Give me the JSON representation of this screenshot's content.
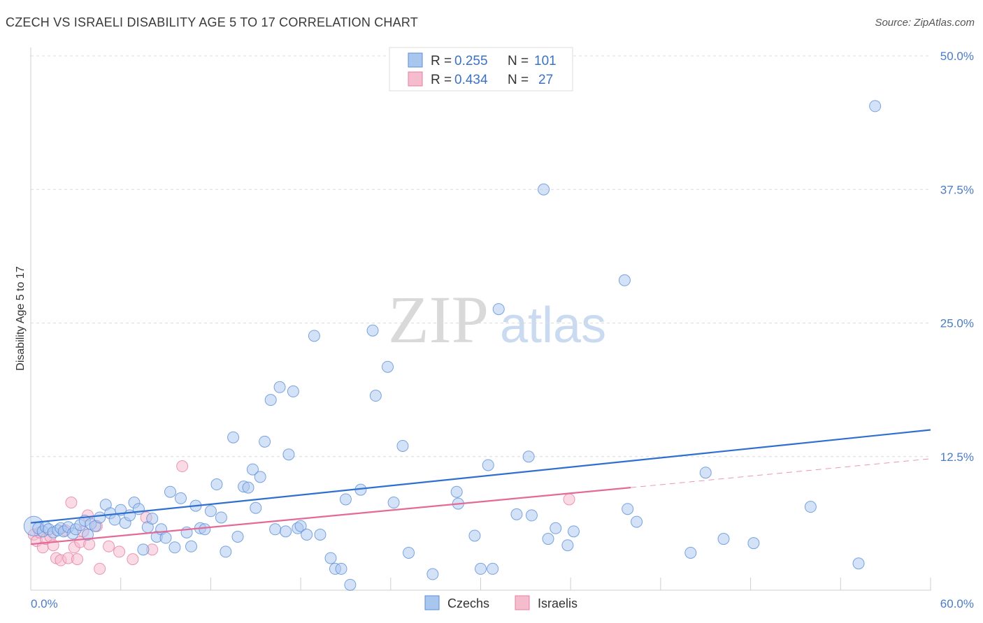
{
  "title": "CZECH VS ISRAELI DISABILITY AGE 5 TO 17 CORRELATION CHART",
  "source": "Source: ZipAtlas.com",
  "watermark": {
    "zip": "ZIP",
    "atlas": "atlas"
  },
  "colors": {
    "blue": "#5b8fd8",
    "blue_fill": "#a9c6ef",
    "blue_line": "#2f6fd0",
    "pink": "#e57fa3",
    "pink_fill": "#f5bccd",
    "pink_line": "#e36a97",
    "tick": "#4a7cc7"
  },
  "legend": {
    "rows": [
      {
        "series": "Czechs",
        "r_label": "R =",
        "r_value": "0.255",
        "n_label": "N =",
        "n_value": "101"
      },
      {
        "series": "Israelis",
        "r_label": "R =",
        "r_value": "0.434",
        "n_label": "N =",
        "n_value": "27"
      }
    ]
  },
  "chart_data": {
    "type": "scatter",
    "title": "CZECH VS ISRAELI DISABILITY AGE 5 TO 17 CORRELATION CHART",
    "xlabel": "",
    "ylabel": "Disability Age 5 to 17",
    "xlim": [
      0,
      60
    ],
    "ylim": [
      0,
      50
    ],
    "x_tick_labels": [
      "0.0%",
      "60.0%"
    ],
    "y_tick_labels": [
      "12.5%",
      "25.0%",
      "37.5%",
      "50.0%"
    ],
    "y_ticks": [
      12.5,
      25.0,
      37.5,
      50.0
    ],
    "x_ticks": [
      0,
      6,
      12,
      18,
      24,
      30,
      36,
      42,
      48,
      54,
      60
    ],
    "grid": true,
    "series": [
      {
        "name": "Czechs",
        "trend": {
          "x": [
            0,
            60
          ],
          "y": [
            6.3,
            15.0
          ]
        },
        "points": [
          [
            0.2,
            6.0
          ],
          [
            0.5,
            5.8
          ],
          [
            0.8,
            5.5
          ],
          [
            1.0,
            5.9
          ],
          [
            1.2,
            5.7
          ],
          [
            1.5,
            5.4
          ],
          [
            1.8,
            5.6
          ],
          [
            2.0,
            5.8
          ],
          [
            2.2,
            5.5
          ],
          [
            2.5,
            5.9
          ],
          [
            2.8,
            5.3
          ],
          [
            3.0,
            5.7
          ],
          [
            3.3,
            6.1
          ],
          [
            3.6,
            6.5
          ],
          [
            3.8,
            5.2
          ],
          [
            4.0,
            6.2
          ],
          [
            4.3,
            6.0
          ],
          [
            4.6,
            6.8
          ],
          [
            5.0,
            8.0
          ],
          [
            5.3,
            7.2
          ],
          [
            5.6,
            6.6
          ],
          [
            6.0,
            7.5
          ],
          [
            6.3,
            6.3
          ],
          [
            6.6,
            7.0
          ],
          [
            6.9,
            8.2
          ],
          [
            7.2,
            7.6
          ],
          [
            7.5,
            3.8
          ],
          [
            7.8,
            5.9
          ],
          [
            8.1,
            6.7
          ],
          [
            8.4,
            5.0
          ],
          [
            8.7,
            5.7
          ],
          [
            9.0,
            4.9
          ],
          [
            9.3,
            9.2
          ],
          [
            9.6,
            4.0
          ],
          [
            10.0,
            8.6
          ],
          [
            10.4,
            5.4
          ],
          [
            10.7,
            4.1
          ],
          [
            11.0,
            7.9
          ],
          [
            11.3,
            5.8
          ],
          [
            11.6,
            5.7
          ],
          [
            12.0,
            7.4
          ],
          [
            12.4,
            9.9
          ],
          [
            12.7,
            6.8
          ],
          [
            13.0,
            3.6
          ],
          [
            13.5,
            14.3
          ],
          [
            13.8,
            5.0
          ],
          [
            14.2,
            9.7
          ],
          [
            14.5,
            9.6
          ],
          [
            14.8,
            11.3
          ],
          [
            15.0,
            7.7
          ],
          [
            15.3,
            10.6
          ],
          [
            15.6,
            13.9
          ],
          [
            16.0,
            17.8
          ],
          [
            16.3,
            5.7
          ],
          [
            16.6,
            19.0
          ],
          [
            17.0,
            5.5
          ],
          [
            17.2,
            12.7
          ],
          [
            17.5,
            18.6
          ],
          [
            17.8,
            5.8
          ],
          [
            18.0,
            6.0
          ],
          [
            18.4,
            5.2
          ],
          [
            18.9,
            23.8
          ],
          [
            19.3,
            5.2
          ],
          [
            20.0,
            3.0
          ],
          [
            20.3,
            2.0
          ],
          [
            20.7,
            2.0
          ],
          [
            21.0,
            8.5
          ],
          [
            21.3,
            0.5
          ],
          [
            22.0,
            9.4
          ],
          [
            22.8,
            24.3
          ],
          [
            23.0,
            18.2
          ],
          [
            23.8,
            20.9
          ],
          [
            24.2,
            8.2
          ],
          [
            24.8,
            13.5
          ],
          [
            25.2,
            3.5
          ],
          [
            26.8,
            1.5
          ],
          [
            28.4,
            9.2
          ],
          [
            28.5,
            8.1
          ],
          [
            29.6,
            5.1
          ],
          [
            30.0,
            2.0
          ],
          [
            30.5,
            11.7
          ],
          [
            30.8,
            2.0
          ],
          [
            31.2,
            26.3
          ],
          [
            32.4,
            7.1
          ],
          [
            33.2,
            12.5
          ],
          [
            33.4,
            7.0
          ],
          [
            34.2,
            37.5
          ],
          [
            34.5,
            4.8
          ],
          [
            35.0,
            5.8
          ],
          [
            35.8,
            4.2
          ],
          [
            36.2,
            5.5
          ],
          [
            39.6,
            29.0
          ],
          [
            39.8,
            7.6
          ],
          [
            40.4,
            6.4
          ],
          [
            44.0,
            3.5
          ],
          [
            45.0,
            11.0
          ],
          [
            46.2,
            4.8
          ],
          [
            48.2,
            4.4
          ],
          [
            52.0,
            7.8
          ],
          [
            55.2,
            2.5
          ],
          [
            56.3,
            45.3
          ]
        ]
      },
      {
        "name": "Israelis",
        "trend": {
          "x": [
            0,
            40
          ],
          "y": [
            4.3,
            9.6
          ]
        },
        "trend_extension": {
          "x": [
            40,
            60
          ],
          "y": [
            9.6,
            12.3
          ]
        },
        "points": [
          [
            0.2,
            5.2
          ],
          [
            0.4,
            4.6
          ],
          [
            0.6,
            5.4
          ],
          [
            0.8,
            4.0
          ],
          [
            1.0,
            4.8
          ],
          [
            1.3,
            5.0
          ],
          [
            1.5,
            4.2
          ],
          [
            1.7,
            3.0
          ],
          [
            2.0,
            2.8
          ],
          [
            2.3,
            5.6
          ],
          [
            2.5,
            3.0
          ],
          [
            2.7,
            8.2
          ],
          [
            2.9,
            4.0
          ],
          [
            3.1,
            2.9
          ],
          [
            3.3,
            4.5
          ],
          [
            3.5,
            5.5
          ],
          [
            3.8,
            7.0
          ],
          [
            3.9,
            4.3
          ],
          [
            4.4,
            6.0
          ],
          [
            4.6,
            2.0
          ],
          [
            5.2,
            4.1
          ],
          [
            5.9,
            3.6
          ],
          [
            6.8,
            2.9
          ],
          [
            7.7,
            6.8
          ],
          [
            8.1,
            3.8
          ],
          [
            10.1,
            11.6
          ],
          [
            35.9,
            8.5
          ]
        ]
      }
    ]
  },
  "bottom_legend": [
    "Czechs",
    "Israelis"
  ]
}
